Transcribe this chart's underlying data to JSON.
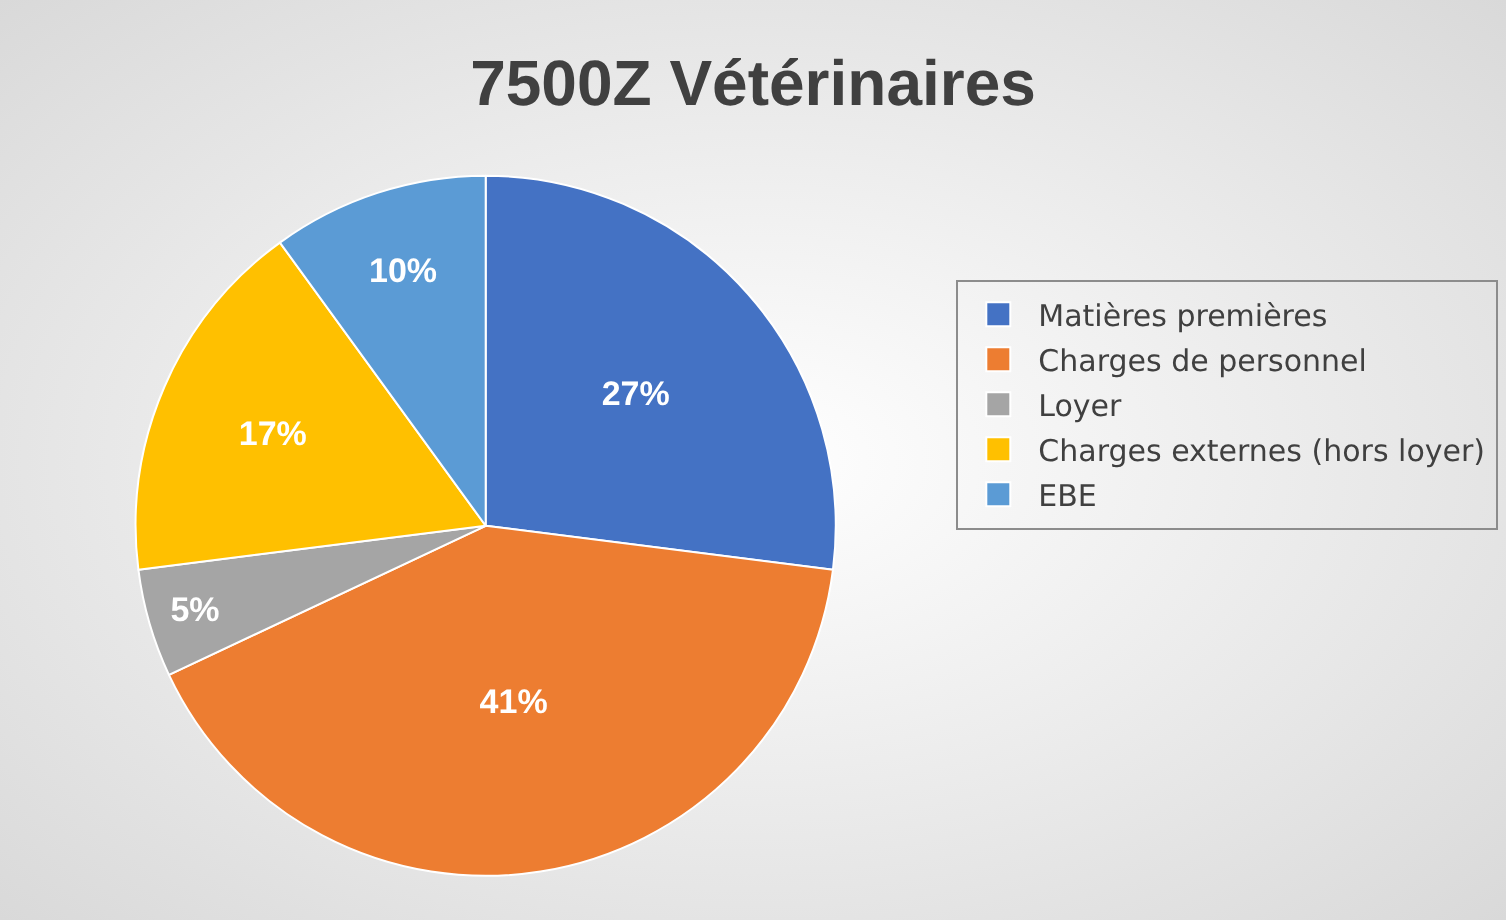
{
  "chart_data": {
    "type": "pie",
    "title": "7500Z Vétérinaires",
    "categories": [
      "Matières premières",
      "Charges de personnel",
      "Loyer",
      "Charges externes (hors loyer)",
      "EBE"
    ],
    "values": [
      27,
      41,
      5,
      17,
      10
    ],
    "colors": [
      "#4472c4",
      "#ed7d31",
      "#a5a5a5",
      "#ffc000",
      "#5b9bd5"
    ],
    "value_labels": [
      "27%",
      "41%",
      "5%",
      "17%",
      "10%"
    ],
    "legend": "right"
  }
}
